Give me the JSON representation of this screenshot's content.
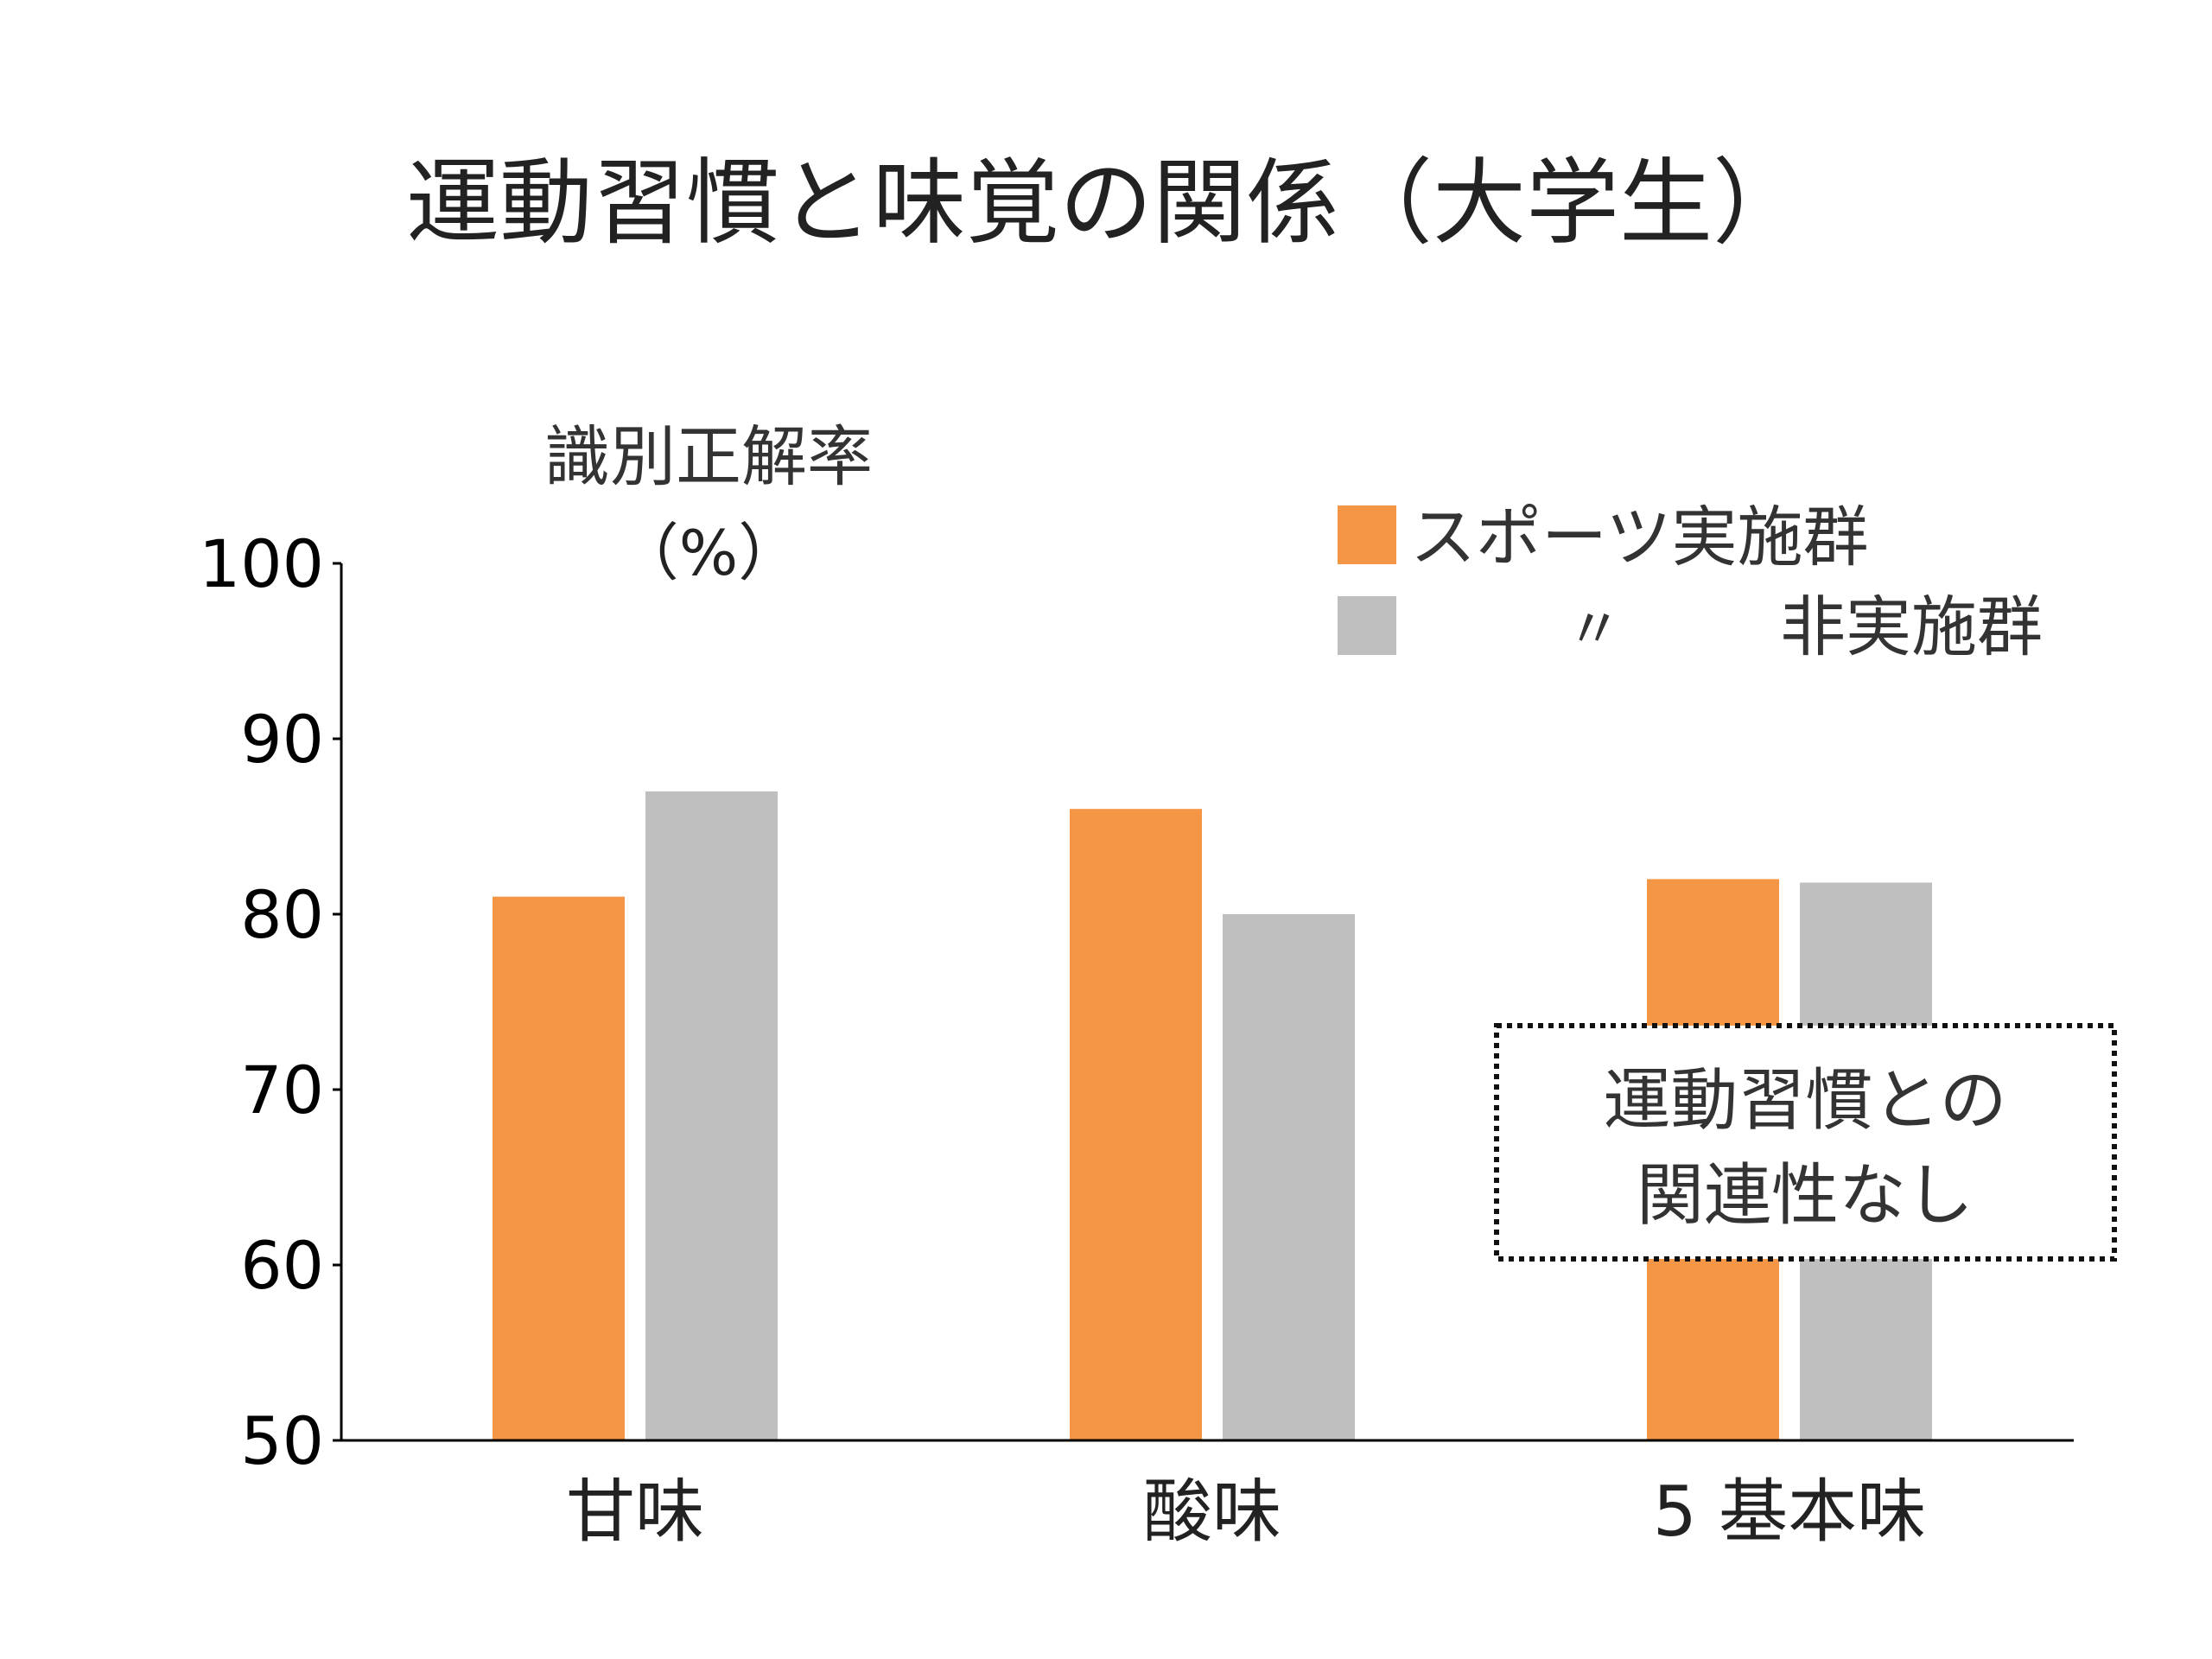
{
  "chart_data": {
    "type": "bar",
    "title": "運動習慣と味覚の関係（大学生）",
    "ylabel_line1": "識別正解率",
    "ylabel_line2": "（%）",
    "ylim": [
      50,
      100
    ],
    "yticks": [
      50,
      60,
      70,
      80,
      90,
      100
    ],
    "categories": [
      "甘味",
      "酸味",
      "5 基本味"
    ],
    "series": [
      {
        "name": "スポーツ実施群",
        "color": "#F59647",
        "values": [
          81,
          86,
          82
        ]
      },
      {
        "name": "非実施群",
        "color": "#BFBFBF",
        "values": [
          87,
          80,
          81.8
        ]
      }
    ],
    "legend": {
      "position": "top-right",
      "item1": "スポーツ実施群",
      "item2_ditto": "〃",
      "item2": "非実施群"
    },
    "annotation": {
      "line1": "運動習慣との",
      "line2": "関連性なし"
    }
  }
}
